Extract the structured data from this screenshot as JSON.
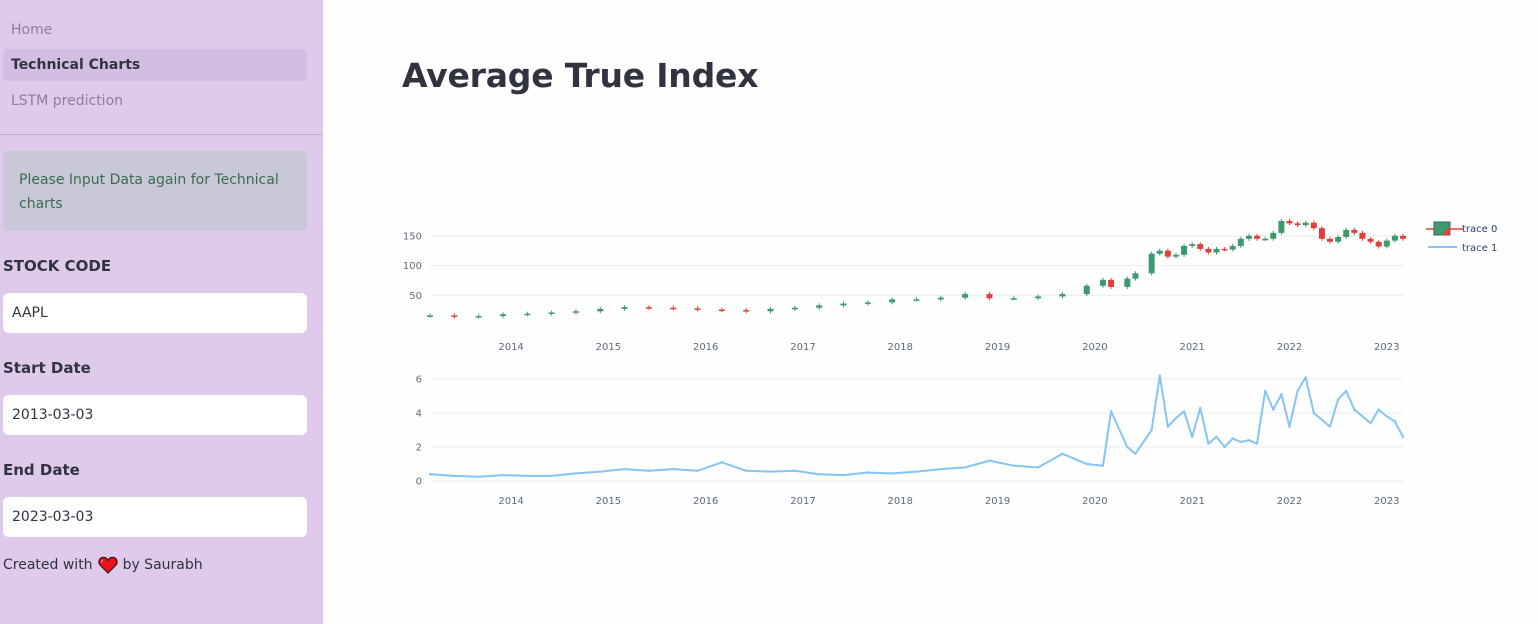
{
  "sidebar": {
    "nav": [
      {
        "label": "Home",
        "active": false
      },
      {
        "label": "Technical Charts",
        "active": true
      },
      {
        "label": "LSTM prediction",
        "active": false
      }
    ],
    "notice": "Please Input Data again for Technical charts",
    "stock_code": {
      "label": "STOCK CODE",
      "value": "AAPL"
    },
    "start_date": {
      "label": "Start Date",
      "value": "2013-03-03"
    },
    "end_date": {
      "label": "End Date",
      "value": "2023-03-03"
    },
    "credit": {
      "prefix": "Created with",
      "icon": "heart-icon",
      "suffix": "by Saurabh",
      "heart_color": "#e8151b"
    }
  },
  "main": {
    "title": "Average True Index"
  },
  "chart_data": [
    {
      "type": "candlestick",
      "name": "trace 0",
      "x": [
        "2013-03",
        "2013-06",
        "2013-09",
        "2013-12",
        "2014-03",
        "2014-06",
        "2014-09",
        "2014-12",
        "2015-03",
        "2015-06",
        "2015-09",
        "2015-12",
        "2016-03",
        "2016-06",
        "2016-09",
        "2016-12",
        "2017-03",
        "2017-06",
        "2017-09",
        "2017-12",
        "2018-03",
        "2018-06",
        "2018-09",
        "2018-12",
        "2019-03",
        "2019-06",
        "2019-09",
        "2019-12",
        "2020-02",
        "2020-03",
        "2020-05",
        "2020-06",
        "2020-08",
        "2020-09",
        "2020-10",
        "2020-11",
        "2020-12",
        "2021-01",
        "2021-02",
        "2021-03",
        "2021-04",
        "2021-05",
        "2021-06",
        "2021-07",
        "2021-08",
        "2021-09",
        "2021-10",
        "2021-11",
        "2021-12",
        "2022-01",
        "2022-02",
        "2022-03",
        "2022-04",
        "2022-05",
        "2022-06",
        "2022-07",
        "2022-08",
        "2022-09",
        "2022-10",
        "2022-11",
        "2022-12",
        "2023-01",
        "2023-02",
        "2023-03"
      ],
      "y": [
        16,
        14,
        15,
        18,
        19,
        21,
        23,
        27,
        30,
        29,
        28,
        26,
        25,
        23,
        27,
        29,
        33,
        36,
        38,
        43,
        43,
        46,
        52,
        45,
        45,
        48,
        52,
        66,
        76,
        64,
        78,
        87,
        120,
        125,
        115,
        118,
        133,
        136,
        128,
        122,
        128,
        127,
        133,
        145,
        150,
        145,
        145,
        155,
        175,
        171,
        168,
        172,
        163,
        145,
        140,
        148,
        160,
        155,
        145,
        140,
        132,
        142,
        150,
        145
      ],
      "legend": "trace 0",
      "y_ticks": [
        50,
        100,
        150
      ],
      "x_ticks": [
        "2014",
        "2015",
        "2016",
        "2017",
        "2018",
        "2019",
        "2020",
        "2021",
        "2022",
        "2023"
      ],
      "colors": {
        "increasing": "#3d9970",
        "decreasing": "#e0413b"
      }
    },
    {
      "type": "line",
      "name": "trace 1",
      "x": [
        "2013-03",
        "2013-06",
        "2013-09",
        "2013-12",
        "2014-03",
        "2014-06",
        "2014-09",
        "2014-12",
        "2015-03",
        "2015-06",
        "2015-09",
        "2015-12",
        "2016-03",
        "2016-06",
        "2016-09",
        "2016-12",
        "2017-03",
        "2017-06",
        "2017-09",
        "2017-12",
        "2018-03",
        "2018-06",
        "2018-09",
        "2018-12",
        "2019-03",
        "2019-06",
        "2019-09",
        "2019-12",
        "2020-02",
        "2020-03",
        "2020-05",
        "2020-06",
        "2020-08",
        "2020-09",
        "2020-10",
        "2020-11",
        "2020-12",
        "2021-01",
        "2021-02",
        "2021-03",
        "2021-04",
        "2021-05",
        "2021-06",
        "2021-07",
        "2021-08",
        "2021-09",
        "2021-10",
        "2021-11",
        "2021-12",
        "2022-01",
        "2022-02",
        "2022-03",
        "2022-04",
        "2022-05",
        "2022-06",
        "2022-07",
        "2022-08",
        "2022-09",
        "2022-10",
        "2022-11",
        "2022-12",
        "2023-01",
        "2023-02",
        "2023-03"
      ],
      "y": [
        0.4,
        0.3,
        0.25,
        0.35,
        0.3,
        0.3,
        0.45,
        0.55,
        0.7,
        0.6,
        0.7,
        0.6,
        1.1,
        0.6,
        0.55,
        0.6,
        0.4,
        0.35,
        0.5,
        0.45,
        0.55,
        0.7,
        0.8,
        1.2,
        0.9,
        0.8,
        1.6,
        1.0,
        0.9,
        4.1,
        2.0,
        1.6,
        3.0,
        6.2,
        3.2,
        3.7,
        4.1,
        2.6,
        4.3,
        2.2,
        2.6,
        2.0,
        2.5,
        2.3,
        2.4,
        2.2,
        5.3,
        4.2,
        5.1,
        3.2,
        5.3,
        6.1,
        4.0,
        3.6,
        3.2,
        4.8,
        5.3,
        4.2,
        3.8,
        3.4,
        4.2,
        3.8,
        3.5,
        2.6
      ],
      "legend": "trace 1",
      "y_ticks": [
        0,
        2,
        4,
        6
      ],
      "x_ticks": [
        "2014",
        "2015",
        "2016",
        "2017",
        "2018",
        "2019",
        "2020",
        "2021",
        "2022",
        "2023"
      ],
      "colors": {
        "line": "#86c5f3"
      }
    }
  ]
}
